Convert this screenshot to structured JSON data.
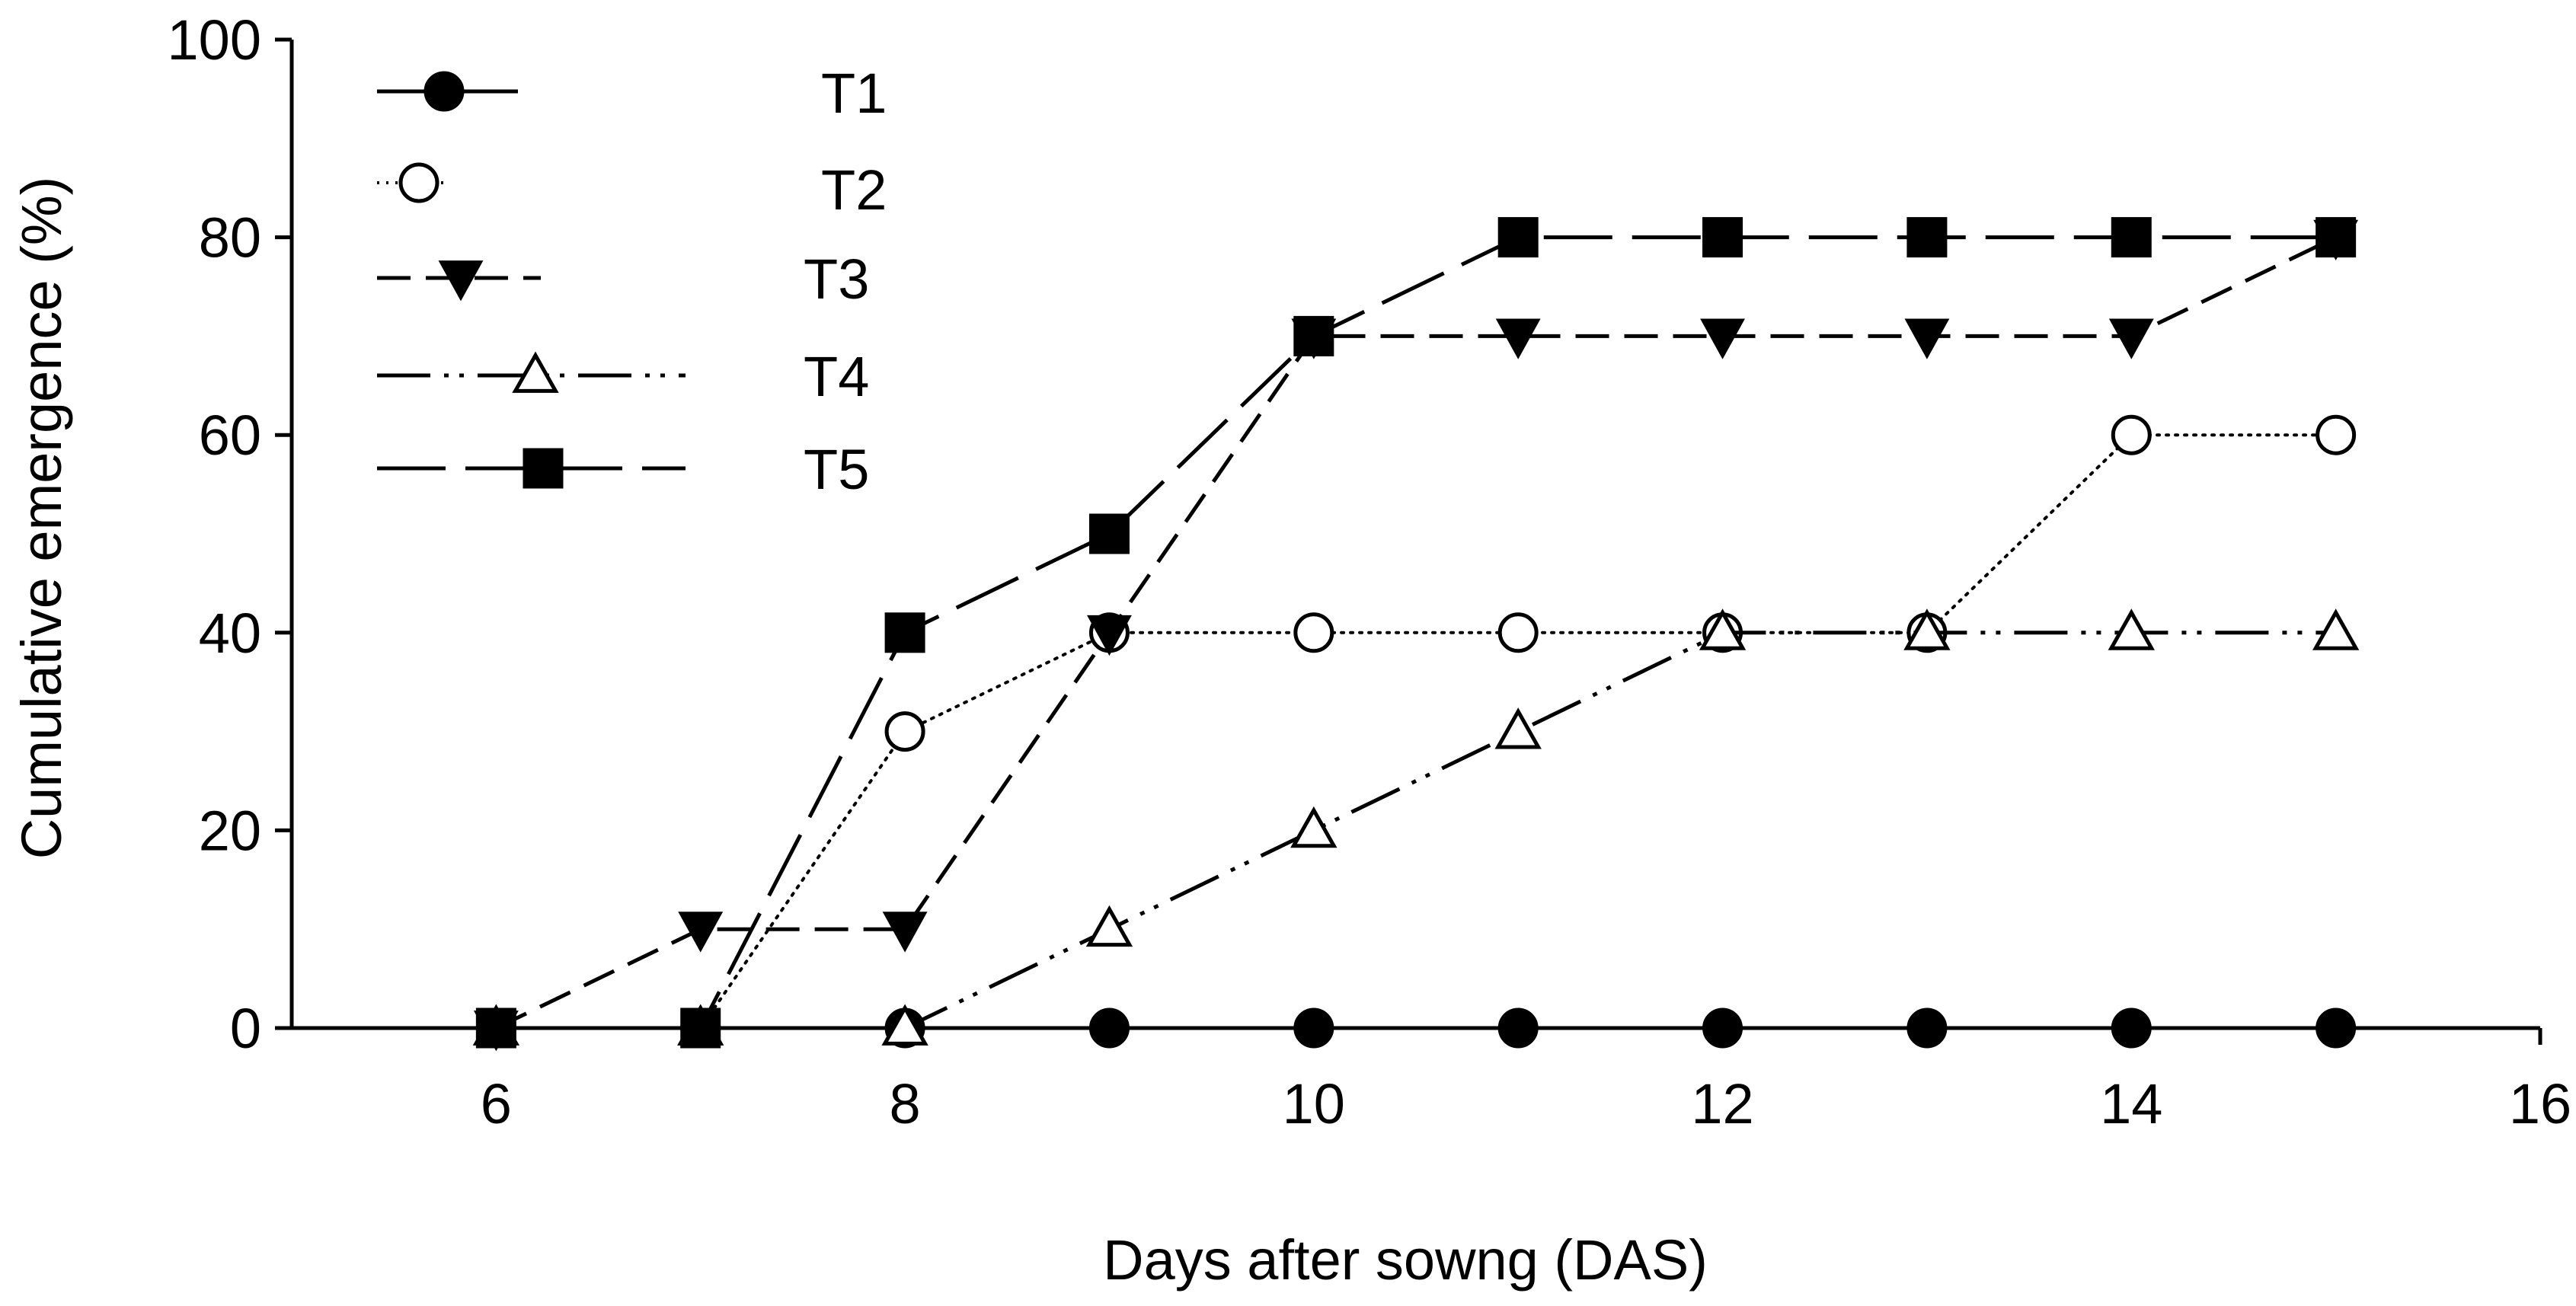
{
  "chart_data": {
    "type": "line",
    "title": "",
    "xlabel": "Days after sowng (DAS)",
    "ylabel": "Cumulative emergence (%)",
    "xlim": [
      5,
      16
    ],
    "ylim": [
      0,
      100
    ],
    "xticks": [
      6,
      8,
      10,
      12,
      14,
      16
    ],
    "yticks": [
      0,
      20,
      40,
      60,
      80,
      100
    ],
    "legend_position": "top-left",
    "grid": false,
    "x": [
      6,
      7,
      8,
      9,
      10,
      11,
      12,
      13,
      14,
      15
    ],
    "series": [
      {
        "name": "T1",
        "marker": "filled-circle",
        "line": "solid",
        "values": [
          0,
          0,
          0,
          0,
          0,
          0,
          0,
          0,
          0,
          0
        ]
      },
      {
        "name": "T2",
        "marker": "open-circle",
        "line": "dotted",
        "values": [
          0,
          0,
          30,
          40,
          40,
          40,
          40,
          40,
          60,
          60
        ]
      },
      {
        "name": "T3",
        "marker": "filled-triangle-down",
        "line": "short-dash",
        "values": [
          0,
          10,
          10,
          40,
          70,
          70,
          70,
          70,
          70,
          80
        ]
      },
      {
        "name": "T4",
        "marker": "open-triangle-up",
        "line": "dash-dot-dot",
        "values": [
          0,
          0,
          0,
          10,
          20,
          30,
          40,
          40,
          40,
          40
        ]
      },
      {
        "name": "T5",
        "marker": "filled-square",
        "line": "long-dash",
        "values": [
          0,
          0,
          40,
          50,
          70,
          80,
          80,
          80,
          80,
          80
        ]
      }
    ]
  }
}
